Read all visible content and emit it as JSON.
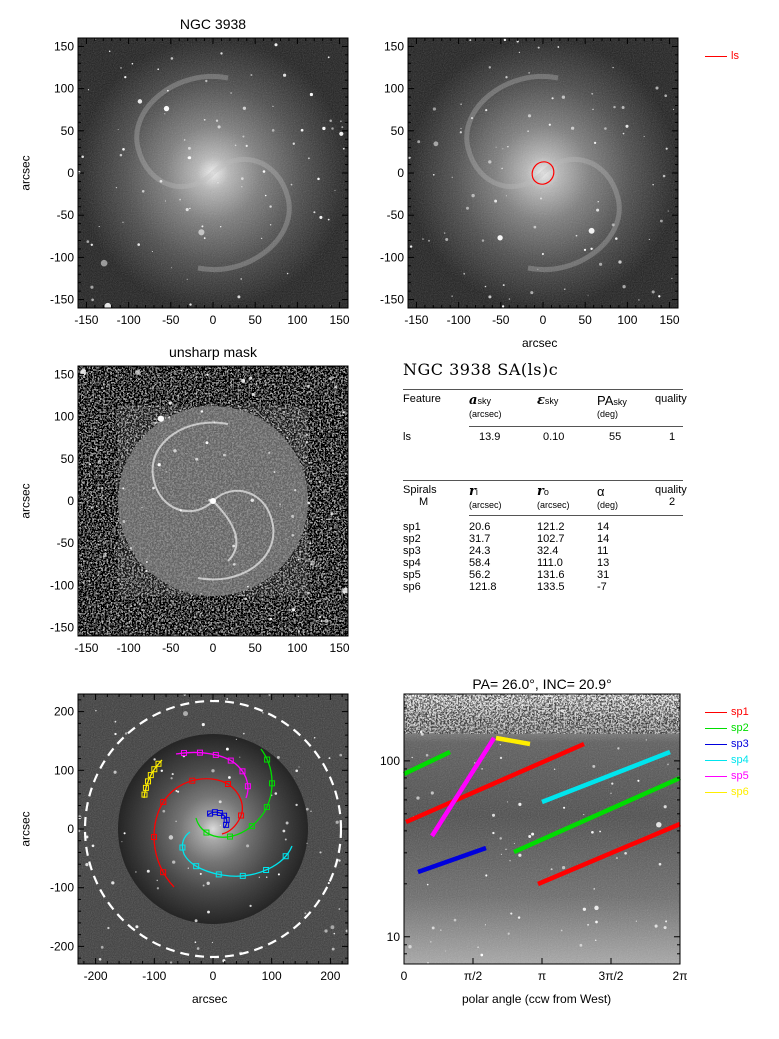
{
  "panels": {
    "image": {
      "title": "NGC 3938",
      "ylabel": "arcsec"
    },
    "overlay": {
      "xlabel": "arcsec",
      "legend": [
        {
          "label": "ls",
          "color": "#ff0000"
        }
      ]
    },
    "unsharp": {
      "title": "unsharp mask",
      "ylabel": "arcsec"
    },
    "spirals_img": {
      "xlabel": "arcsec",
      "ylabel": "arcsec"
    },
    "polar": {
      "title": "PA= 26.0°, INC= 20.9°",
      "xlabel": "polar angle (ccw from West)"
    }
  },
  "ticks": {
    "small_x": [
      "-150",
      "-100",
      "-50",
      "0",
      "50",
      "100",
      "150"
    ],
    "small_y": [
      "150",
      "100",
      "50",
      "0",
      "-50",
      "-100",
      "-150"
    ],
    "big_x": [
      "-200",
      "-100",
      "0",
      "100",
      "200"
    ],
    "big_y": [
      "200",
      "100",
      "0",
      "-100",
      "-200"
    ],
    "polar_x": [
      "0",
      "π/2",
      "π",
      "3π/2",
      "2π"
    ],
    "polar_y": [
      "100",
      "10"
    ]
  },
  "table": {
    "title": "NGC 3938  SA(ls)c",
    "feature_header": {
      "feature": "Feature",
      "a": "a",
      "a_sub": "sky",
      "a_unit": "(arcsec)",
      "e": "ε",
      "e_sub": "sky",
      "pa": "PA",
      "pa_sub": "sky",
      "pa_unit": "(deg)",
      "quality": "quality"
    },
    "feature_rows": [
      {
        "name": "ls",
        "a": "13.9",
        "e": "0.10",
        "pa": "55",
        "q": "1"
      }
    ],
    "spiral_header": {
      "spirals": "Spirals",
      "m": "M",
      "ri": "r",
      "ri_sub": "i",
      "ri_unit": "(arcsec)",
      "ro": "r",
      "ro_sub": "o",
      "ro_unit": "(arcsec)",
      "alpha": "α",
      "alpha_unit": "(deg)",
      "quality": "quality",
      "q_value": "2"
    },
    "spiral_rows": [
      {
        "name": "sp1",
        "ri": "20.6",
        "ro": "121.2",
        "alpha": "14"
      },
      {
        "name": "sp2",
        "ri": "31.7",
        "ro": "102.7",
        "alpha": "14"
      },
      {
        "name": "sp3",
        "ri": "24.3",
        "ro": "32.4",
        "alpha": "11"
      },
      {
        "name": "sp4",
        "ri": "58.4",
        "ro": "111.0",
        "alpha": "13"
      },
      {
        "name": "sp5",
        "ri": "56.2",
        "ro": "131.6",
        "alpha": "31"
      },
      {
        "name": "sp6",
        "ri": "121.8",
        "ro": "133.5",
        "alpha": "-7"
      }
    ]
  },
  "spiral_legend": [
    {
      "label": "sp1",
      "color": "#ff0000"
    },
    {
      "label": "sp2",
      "color": "#00dd00"
    },
    {
      "label": "sp3",
      "color": "#0000dd"
    },
    {
      "label": "sp4",
      "color": "#00e5ee"
    },
    {
      "label": "sp5",
      "color": "#ff00ff"
    },
    {
      "label": "sp6",
      "color": "#ffee00"
    }
  ]
}
